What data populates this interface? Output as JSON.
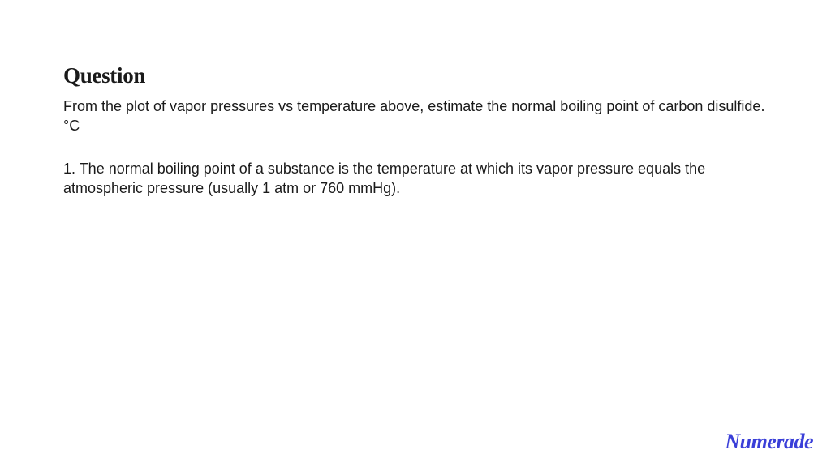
{
  "heading": "Question",
  "paragraph1": "From the plot of vapor pressures vs temperature above, estimate the normal boiling point of carbon disulfide. °C",
  "paragraph2": "1. The normal boiling point of a substance is the temperature at which its vapor pressure equals the atmospheric pressure (usually 1 atm or 760 mmHg).",
  "logo_text": "Numerade",
  "colors": {
    "background": "#ffffff",
    "text": "#1a1a1a",
    "logo": "#3a3fd8"
  },
  "typography": {
    "heading_fontsize": 27,
    "heading_weight": 700,
    "body_fontsize": 18,
    "logo_fontsize": 26
  }
}
